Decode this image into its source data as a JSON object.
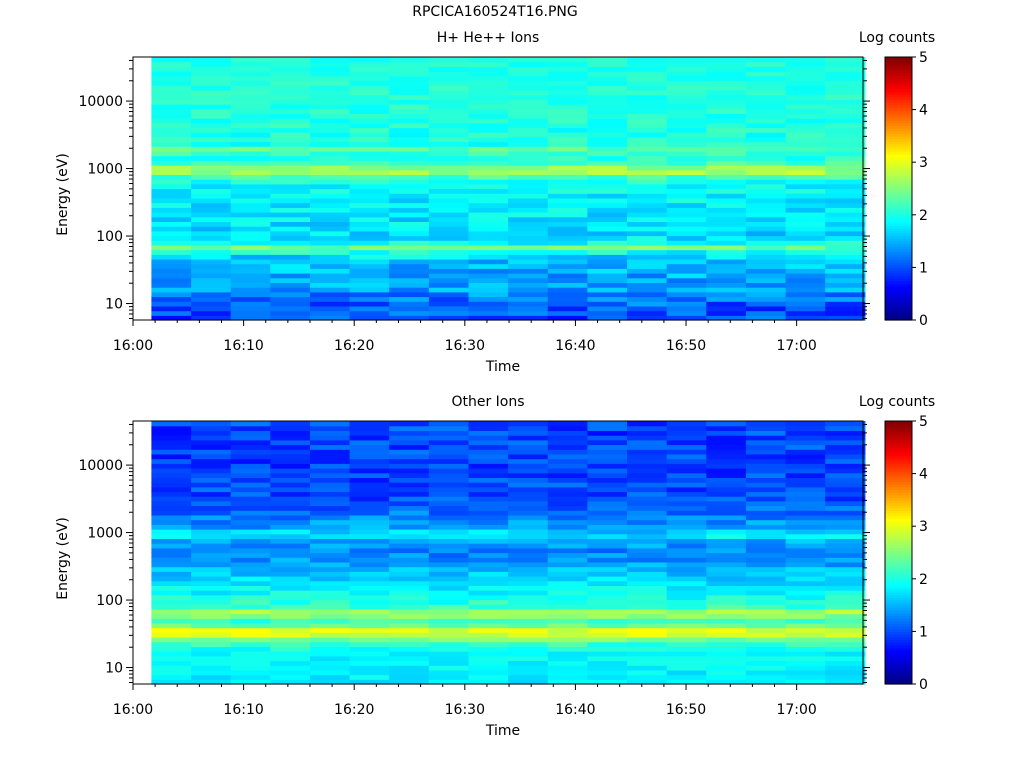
{
  "page": {
    "title": "RPCICA160524T16.PNG"
  },
  "colors": {
    "background": "#ffffff",
    "axis": "#000000",
    "colormap": "jet"
  },
  "chart_data": [
    {
      "type": "heatmap",
      "title": "H+ He++ Ions",
      "xlabel": "Time",
      "ylabel": "Energy (eV)",
      "x_ticks": [
        "16:00",
        "16:10",
        "16:20",
        "16:30",
        "16:40",
        "16:50",
        "17:00"
      ],
      "xlim": [
        "16:00",
        "17:06"
      ],
      "data_x_range": [
        "16:01:40",
        "17:06:10"
      ],
      "y_scale": "log",
      "ylim": [
        5.7,
        45000
      ],
      "y_ticks": [
        "10",
        "100",
        "1000",
        "10000"
      ],
      "colorbar": {
        "label": "Log counts",
        "range": [
          0,
          5
        ],
        "ticks": [
          "0",
          "1",
          "2",
          "3",
          "4",
          "5"
        ]
      },
      "time_columns": 18,
      "energy_profile": [
        {
          "energy": 7,
          "log_counts": 1.0
        },
        {
          "energy": 10,
          "log_counts": 1.1
        },
        {
          "energy": 15,
          "log_counts": 1.35
        },
        {
          "energy": 25,
          "log_counts": 1.45
        },
        {
          "energy": 45,
          "log_counts": 1.6
        },
        {
          "energy": 60,
          "log_counts": 2.0
        },
        {
          "energy": 66,
          "log_counts": 2.6
        },
        {
          "energy": 72,
          "log_counts": 2.0
        },
        {
          "energy": 100,
          "log_counts": 1.7
        },
        {
          "energy": 300,
          "log_counts": 1.8
        },
        {
          "energy": 600,
          "log_counts": 1.9
        },
        {
          "energy": 850,
          "log_counts": 2.4
        },
        {
          "energy": 950,
          "log_counts": 3.05
        },
        {
          "energy": 1080,
          "log_counts": 2.4
        },
        {
          "energy": 1500,
          "log_counts": 2.0
        },
        {
          "energy": 1950,
          "log_counts": 2.35
        },
        {
          "energy": 2300,
          "log_counts": 2.0
        },
        {
          "energy": 10000,
          "log_counts": 2.05
        },
        {
          "energy": 45000,
          "log_counts": 2.0
        }
      ],
      "noise": {
        "low_energy": 0.35,
        "high_energy": 0.12
      }
    },
    {
      "type": "heatmap",
      "title": "Other Ions",
      "xlabel": "Time",
      "ylabel": "Energy (eV)",
      "x_ticks": [
        "16:00",
        "16:10",
        "16:20",
        "16:30",
        "16:40",
        "16:50",
        "17:00"
      ],
      "xlim": [
        "16:00",
        "17:06"
      ],
      "data_x_range": [
        "16:01:40",
        "17:06:10"
      ],
      "y_scale": "log",
      "ylim": [
        5.7,
        45000
      ],
      "y_ticks": [
        "10",
        "100",
        "1000",
        "10000"
      ],
      "colorbar": {
        "label": "Log counts",
        "range": [
          0,
          5
        ],
        "ticks": [
          "0",
          "1",
          "2",
          "3",
          "4",
          "5"
        ]
      },
      "time_columns": 18,
      "energy_profile": [
        {
          "energy": 7,
          "log_counts": 1.8
        },
        {
          "energy": 12,
          "log_counts": 1.85
        },
        {
          "energy": 18,
          "log_counts": 1.9
        },
        {
          "energy": 24,
          "log_counts": 2.2
        },
        {
          "energy": 30,
          "log_counts": 2.9
        },
        {
          "energy": 36,
          "log_counts": 2.95
        },
        {
          "energy": 43,
          "log_counts": 2.3
        },
        {
          "energy": 52,
          "log_counts": 2.1
        },
        {
          "energy": 60,
          "log_counts": 2.6
        },
        {
          "energy": 66,
          "log_counts": 2.85
        },
        {
          "energy": 75,
          "log_counts": 2.2
        },
        {
          "energy": 100,
          "log_counts": 2.0
        },
        {
          "energy": 200,
          "log_counts": 1.7
        },
        {
          "energy": 500,
          "log_counts": 1.25
        },
        {
          "energy": 800,
          "log_counts": 1.5
        },
        {
          "energy": 950,
          "log_counts": 1.95
        },
        {
          "energy": 1100,
          "log_counts": 1.45
        },
        {
          "energy": 3000,
          "log_counts": 1.0
        },
        {
          "energy": 10000,
          "log_counts": 0.95
        },
        {
          "energy": 45000,
          "log_counts": 0.95
        }
      ],
      "noise": {
        "low_energy": 0.15,
        "high_energy": 0.3
      }
    }
  ]
}
